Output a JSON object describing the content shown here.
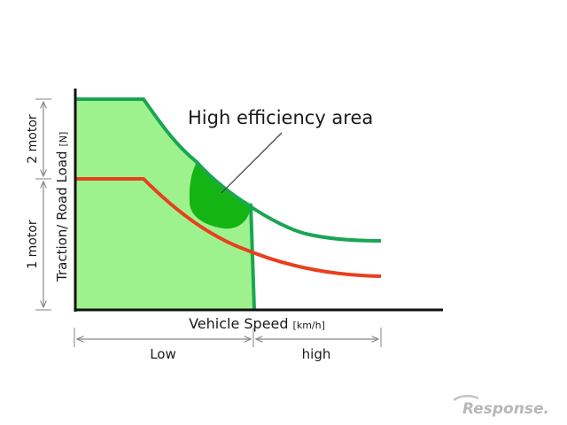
{
  "diagram": {
    "annotation": "High efficiency area",
    "x_axis": {
      "label": "Vehicle Speed",
      "unit": "[km/h]"
    },
    "y_axis": {
      "label": "Traction/ Road Load",
      "unit": "[N]"
    },
    "motor_labels": {
      "two_motor": "2 motor",
      "one_motor": "1 motor"
    },
    "speed_ranges": {
      "low": "Low",
      "high": "high"
    },
    "curves": [
      {
        "id": "two-motor-traction",
        "color": "#1aa552"
      },
      {
        "id": "one-motor-traction",
        "color": "#e8401c"
      }
    ],
    "regions": {
      "one_motor_operating_area": "#9ef28e",
      "high_efficiency_area": "#14b414"
    }
  },
  "watermark": "Response."
}
